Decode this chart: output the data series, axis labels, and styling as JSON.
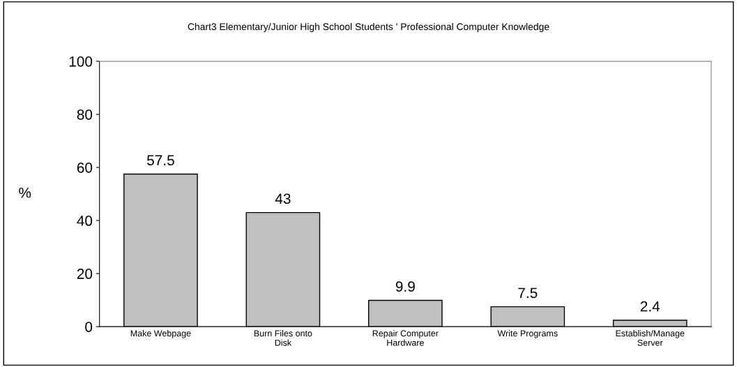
{
  "chart_data": {
    "type": "bar",
    "title": "Chart3 Elementary/Junior High School Students ' Professional Computer Knowledge",
    "ylabel": "%",
    "categories": [
      "Make Webpage",
      "Burn Files onto\nDisk",
      "Repair Computer\nHardware",
      "Write Programs",
      "Establish/Manage\nServer"
    ],
    "values": [
      57.5,
      43,
      9.9,
      7.5,
      2.4
    ],
    "color": "#c0c0c0",
    "ylim": [
      0,
      100
    ],
    "yticks": [
      0,
      20,
      40,
      60,
      80,
      100
    ],
    "data_labels": true,
    "grid": false
  }
}
